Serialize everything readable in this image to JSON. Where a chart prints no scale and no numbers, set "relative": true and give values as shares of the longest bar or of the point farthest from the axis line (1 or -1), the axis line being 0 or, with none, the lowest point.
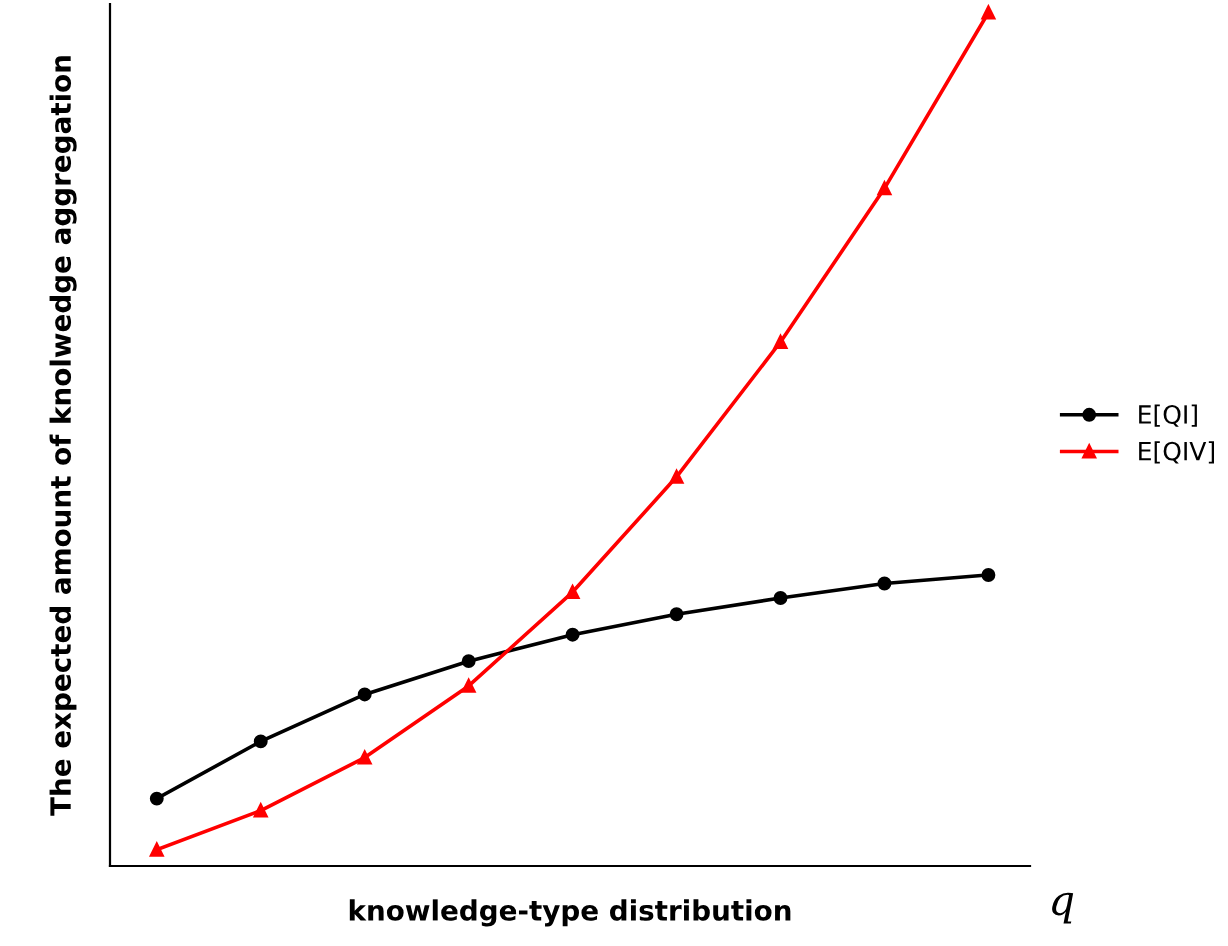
{
  "chart_data": {
    "type": "line",
    "relative": true,
    "xlabel": "knowledge-type distribution",
    "ylabel": "The expected amount of knolwedge aggregation",
    "annotations": [
      "q"
    ],
    "categories": [
      null,
      null,
      null,
      null,
      null,
      null,
      null,
      null,
      null
    ],
    "series": [
      {
        "name": "E[QI]",
        "color": "#000000",
        "marker": "circle",
        "values": [
          0.079,
          0.146,
          0.201,
          0.24,
          0.271,
          0.295,
          0.314,
          0.331,
          0.341
        ]
      },
      {
        "name": "E[QIV]",
        "color": "#ff0000",
        "marker": "triangle",
        "values": [
          0.019,
          0.065,
          0.127,
          0.211,
          0.321,
          0.456,
          0.614,
          0.794,
          1.0
        ]
      }
    ],
    "legend": "right",
    "line_style": "solid"
  }
}
